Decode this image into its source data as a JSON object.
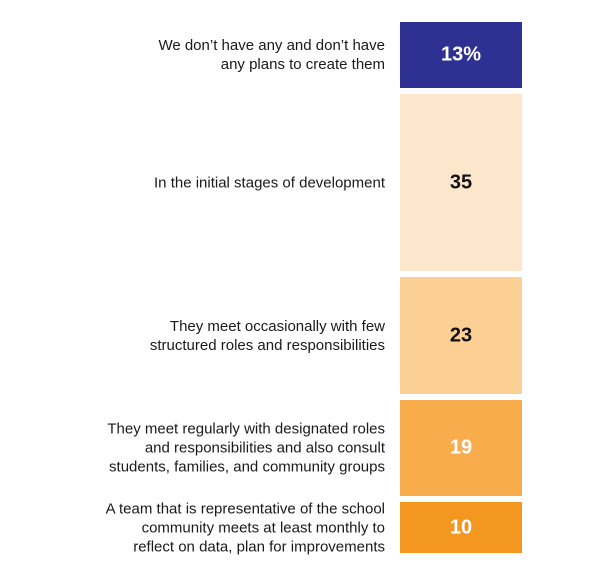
{
  "chart_data": {
    "type": "bar",
    "orientation": "stacked-vertical",
    "categories": [
      "We don’t have any and don’t have\nany plans to create them",
      "In the initial stages of development",
      "They meet occasionally with few\nstructured roles and responsibilities",
      "They meet regularly with designated roles\nand responsibilities and also consult\nstudents, families, and community groups",
      "A team that is representative of the school\ncommunity meets at least monthly to\nreflect on data, plan for improvements"
    ],
    "values": [
      13,
      35,
      23,
      19,
      10
    ],
    "value_labels": [
      "13%",
      "35",
      "23",
      "19",
      "10"
    ],
    "unit": "%",
    "colors": [
      "#2e3192",
      "#fde7cc",
      "#fccf94",
      "#f9ac4c",
      "#f39720"
    ],
    "label_colors": [
      "#ffffff",
      "#111111",
      "#111111",
      "#ffffff",
      "#ffffff"
    ]
  }
}
